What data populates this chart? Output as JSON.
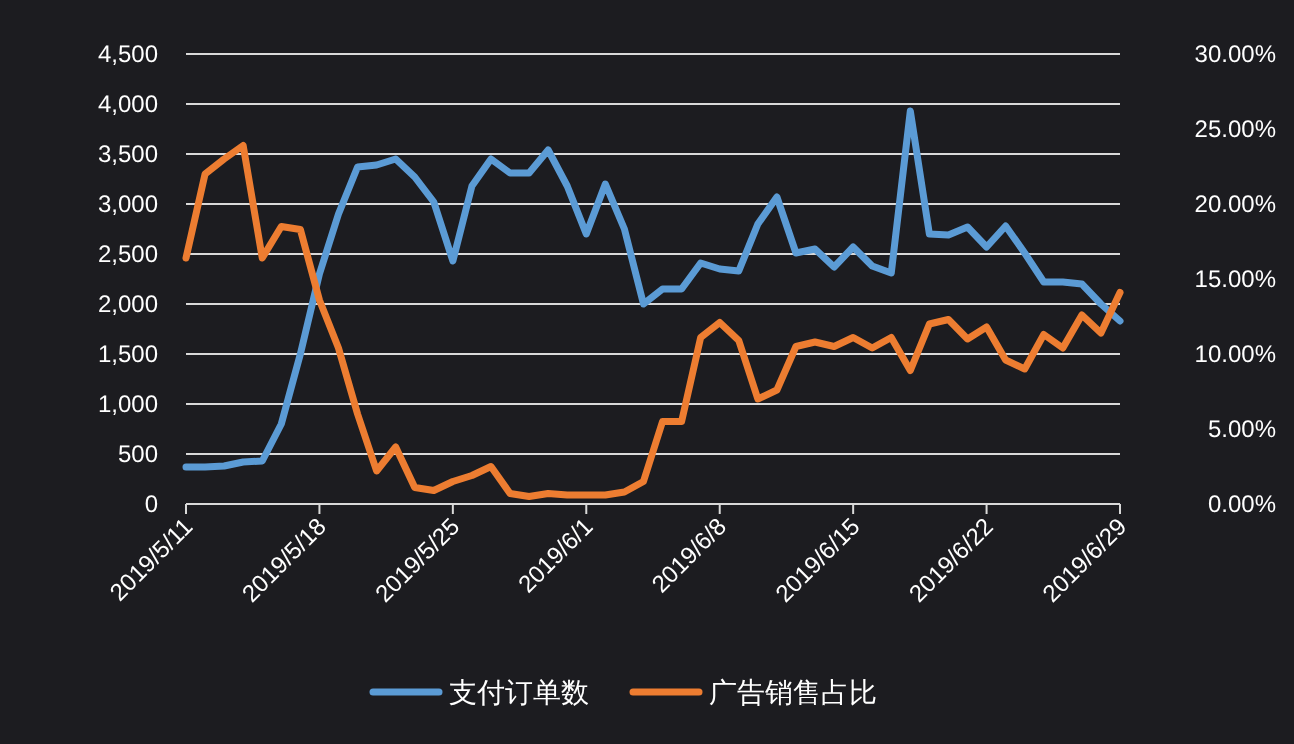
{
  "chart_data": {
    "type": "line",
    "x": [
      "2019-05-11",
      "2019-05-12",
      "2019-05-13",
      "2019-05-14",
      "2019-05-15",
      "2019-05-16",
      "2019-05-17",
      "2019-05-18",
      "2019-05-19",
      "2019-05-20",
      "2019-05-21",
      "2019-05-22",
      "2019-05-23",
      "2019-05-24",
      "2019-05-25",
      "2019-05-26",
      "2019-05-27",
      "2019-05-28",
      "2019-05-29",
      "2019-05-30",
      "2019-05-31",
      "2019-06-01",
      "2019-06-02",
      "2019-06-03",
      "2019-06-04",
      "2019-06-05",
      "2019-06-06",
      "2019-06-07",
      "2019-06-08",
      "2019-06-09",
      "2019-06-10",
      "2019-06-11",
      "2019-06-12",
      "2019-06-13",
      "2019-06-14",
      "2019-06-15",
      "2019-06-16",
      "2019-06-17",
      "2019-06-18",
      "2019-06-19",
      "2019-06-20",
      "2019-06-21",
      "2019-06-22",
      "2019-06-23",
      "2019-06-24",
      "2019-06-25",
      "2019-06-26",
      "2019-06-27",
      "2019-06-28",
      "2019-06-29"
    ],
    "series": [
      {
        "name": "支付订单数",
        "color": "#5b9bd5",
        "values": [
          370,
          370,
          380,
          420,
          430,
          800,
          1500,
          2300,
          2900,
          3370,
          3390,
          3450,
          3270,
          3020,
          2430,
          3180,
          3450,
          3310,
          3310,
          3540,
          3180,
          2700,
          3200,
          2750,
          2000,
          2150,
          2150,
          2410,
          2350,
          2330,
          2800,
          3070,
          2510,
          2550,
          2370,
          2570,
          2380,
          2310,
          3930,
          2700,
          2690,
          2770,
          2570,
          2780,
          2510,
          2220,
          2220,
          2200,
          2000,
          1830
        ]
      },
      {
        "name": "广告销售占比",
        "color": "#ed7d31",
        "axis": "y2",
        "values": [
          16.4,
          22.0,
          23.0,
          23.9,
          16.4,
          18.5,
          18.3,
          13.6,
          10.4,
          6.0,
          2.2,
          3.8,
          1.1,
          0.9,
          1.5,
          1.9,
          2.5,
          0.7,
          0.5,
          0.7,
          0.6,
          0.6,
          0.6,
          0.8,
          1.5,
          5.5,
          5.5,
          11.1,
          12.1,
          10.9,
          7.0,
          7.6,
          10.5,
          10.8,
          10.5,
          11.1,
          10.4,
          11.1,
          8.9,
          12.0,
          12.3,
          11.0,
          11.8,
          9.6,
          9.0,
          11.3,
          10.4,
          12.6,
          11.4,
          14.1
        ]
      }
    ],
    "xlim": [
      "2019-05-11",
      "2019-06-29"
    ],
    "xticks": [
      {
        "value": "2019-05-11",
        "label": "2019/5/11"
      },
      {
        "value": "2019-05-18",
        "label": "2019/5/18"
      },
      {
        "value": "2019-05-25",
        "label": "2019/5/25"
      },
      {
        "value": "2019-06-01",
        "label": "2019/6/1"
      },
      {
        "value": "2019-06-08",
        "label": "2019/6/8"
      },
      {
        "value": "2019-06-15",
        "label": "2019/6/15"
      },
      {
        "value": "2019-06-22",
        "label": "2019/6/22"
      },
      {
        "value": "2019-06-29",
        "label": "2019/6/29"
      }
    ],
    "ylim": [
      0,
      4500
    ],
    "yticks": [
      {
        "value": 0,
        "label": "0"
      },
      {
        "value": 500,
        "label": "500"
      },
      {
        "value": 1000,
        "label": "1,000"
      },
      {
        "value": 1500,
        "label": "1,500"
      },
      {
        "value": 2000,
        "label": "2,000"
      },
      {
        "value": 2500,
        "label": "2,500"
      },
      {
        "value": 3000,
        "label": "3,000"
      },
      {
        "value": 3500,
        "label": "3,500"
      },
      {
        "value": 4000,
        "label": "4,000"
      },
      {
        "value": 4500,
        "label": "4,500"
      }
    ],
    "y2lim": [
      0,
      30
    ],
    "y2ticks": [
      {
        "value": 0,
        "label": "0.00%"
      },
      {
        "value": 5,
        "label": "5.00%"
      },
      {
        "value": 10,
        "label": "10.00%"
      },
      {
        "value": 15,
        "label": "15.00%"
      },
      {
        "value": 20,
        "label": "20.00%"
      },
      {
        "value": 25,
        "label": "25.00%"
      },
      {
        "value": 30,
        "label": "30.00%"
      }
    ],
    "grid": "y",
    "legend": "bottom",
    "marker": "none"
  }
}
